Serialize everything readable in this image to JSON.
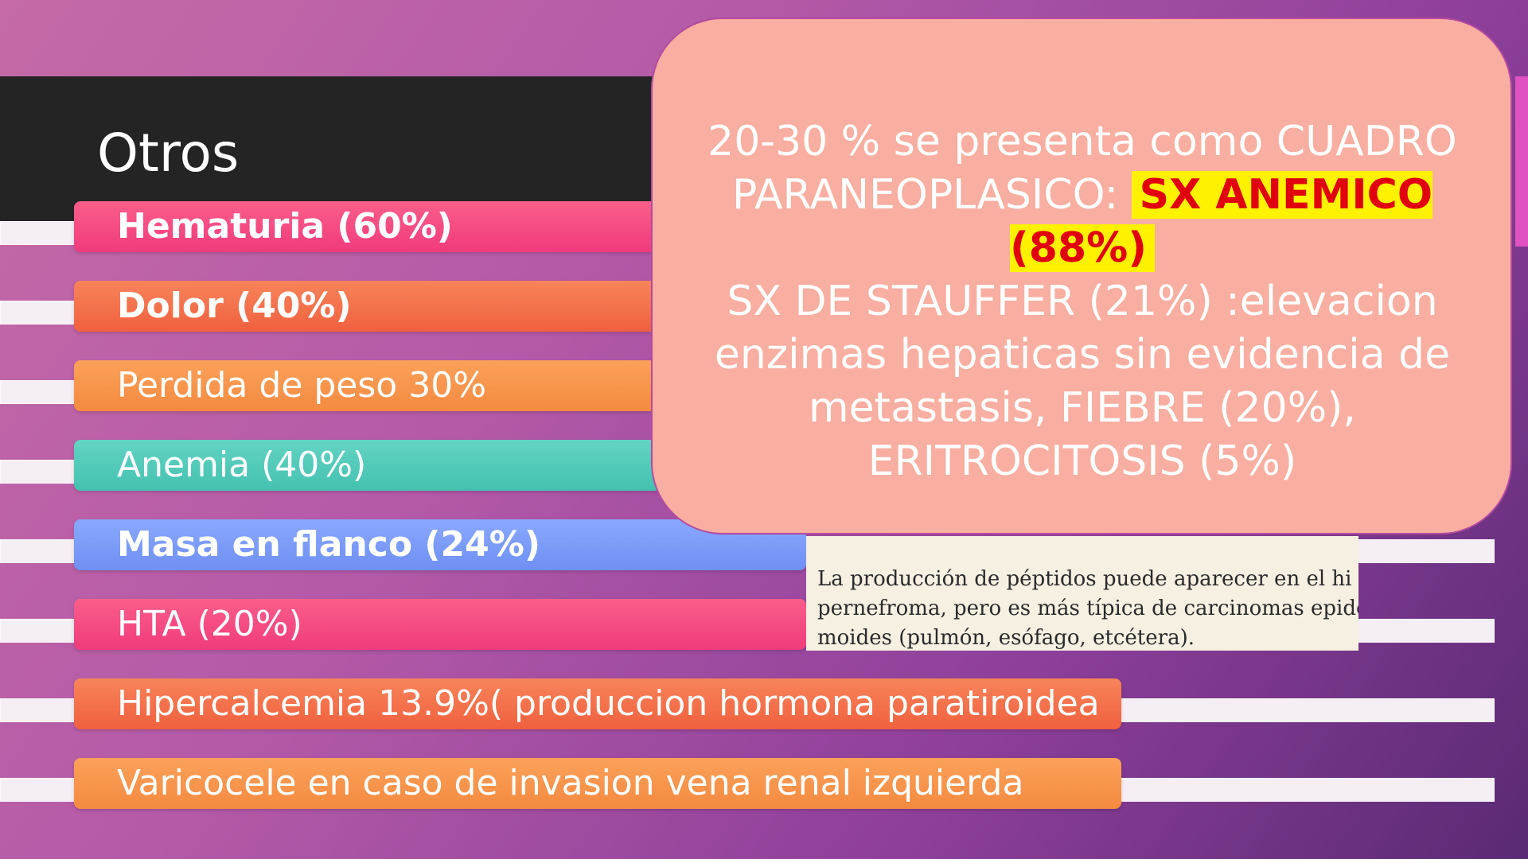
{
  "slide": {
    "title": "Otros",
    "items": [
      {
        "label": "Hematuria (60%)",
        "color": "#f03b7c",
        "color2": "#fa5e8a",
        "bold": true
      },
      {
        "label": "Dolor (40%)",
        "color": "#f0603f",
        "color2": "#f7845a",
        "bold": true
      },
      {
        "label": "Perdida de peso 30%",
        "color": "#f48a40",
        "color2": "#fba15a",
        "bold": false
      },
      {
        "label": "Anemia (40%)",
        "color": "#44c1b0",
        "color2": "#63d4c3",
        "bold": false
      },
      {
        "label": "Masa en flanco (24%)",
        "color": "#6e90f2",
        "color2": "#8aa8ff",
        "bold": true
      },
      {
        "label": "HTA (20%)",
        "color": "#f03b7c",
        "color2": "#fa5e8a",
        "bold": false
      },
      {
        "label": "Hipercalcemia 13.9%( produccion hormona paratiroidea",
        "color": "#f0603f",
        "color2": "#f7845a",
        "bold": false
      },
      {
        "label": "Varicocele en caso de invasion vena renal izquierda",
        "color": "#f48a40",
        "color2": "#fba15a",
        "bold": false
      }
    ],
    "callout": {
      "line1": "20-30 % se presenta como CUADRO",
      "line2_prefix": "PARANEOPLASICO: ",
      "highlight": "SX ANEMICO (88%)",
      "line3": "SX DE STAUFFER  (21%) :elevacion",
      "line4": "enzimas hepaticas sin evidencia de",
      "line5": "metastasis, FIEBRE (20%),",
      "line6": "ERITROCITOSIS (5%)"
    },
    "excerpt": {
      "line1": "La producción de péptidos puede aparecer en el hi",
      "line2": "pernefroma, pero es más típica de carcinomas epider",
      "line3": "moides (pulmón, esófago, etcétera)."
    }
  }
}
